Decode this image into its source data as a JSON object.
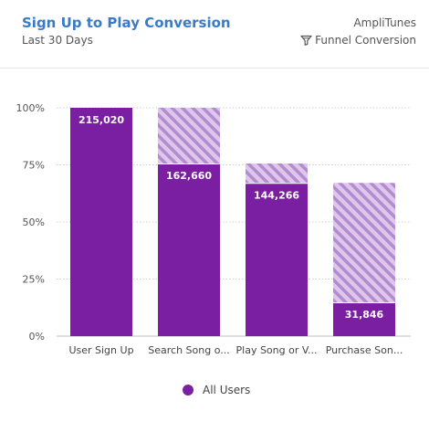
{
  "header": {
    "title": "Sign Up to Play Conversion",
    "subtitle": "Last 30 Days",
    "project": "AmpliTunes",
    "mode_label": "Funnel Conversion"
  },
  "colors": {
    "bar": "#7b1fa2",
    "stripe_light": "#ddc7ea",
    "stripe_dark": "#b48ad0",
    "title": "#3a7bc8"
  },
  "chart_data": {
    "type": "bar",
    "categories": [
      "User Sign Up",
      "Search Song o...",
      "Play Song or V...",
      "Purchase Son..."
    ],
    "series": [
      {
        "name": "All Users",
        "values": [
          100,
          75.6,
          67.1,
          14.8
        ],
        "counts": [
          "215,020",
          "162,660",
          "144,266",
          "31,846"
        ]
      }
    ],
    "previous_step": [
      100,
      100,
      75.6,
      67.1
    ],
    "ylim": [
      0,
      100
    ],
    "yticks": [
      0,
      25,
      50,
      75,
      100
    ],
    "ytick_labels": [
      "0%",
      "25%",
      "50%",
      "75%",
      "100%"
    ],
    "legend": {
      "position": "bottom",
      "entries": [
        "All Users"
      ]
    },
    "grid": true
  }
}
